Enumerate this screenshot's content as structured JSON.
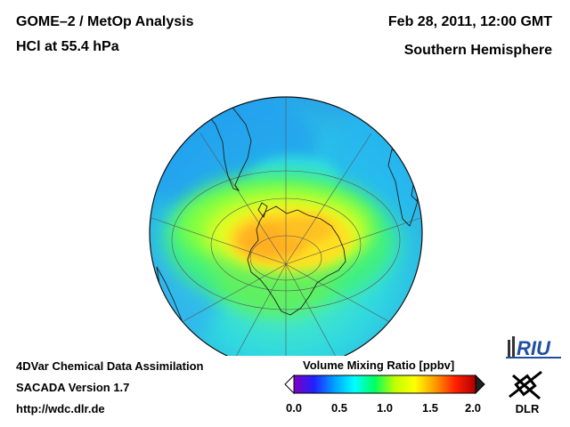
{
  "header": {
    "title": "GOME–2 / MetOp Analysis",
    "subtitle": "HCl at 55.4 hPa",
    "datetime": "Feb 28, 2011, 12:00 GMT",
    "hemisphere": "Southern Hemisphere"
  },
  "footer": {
    "line1": "4DVar Chemical Data Assimilation",
    "line2": "SACADA Version 1.7",
    "line3": "http://wdc.dlr.de"
  },
  "colorbar": {
    "title": "Volume Mixing Ratio [ppbv]",
    "ticks": [
      "0.0",
      "0.5",
      "1.0",
      "1.5",
      "2.0"
    ],
    "min": 0.0,
    "max": 2.0,
    "colors": [
      "#8000c0",
      "#2020ff",
      "#00a0ff",
      "#00ffff",
      "#00ff60",
      "#c0ff00",
      "#ffff00",
      "#ff9900",
      "#ff2000",
      "#b00000"
    ]
  },
  "logos": {
    "riu": "RIU",
    "dlr": "DLR"
  }
}
